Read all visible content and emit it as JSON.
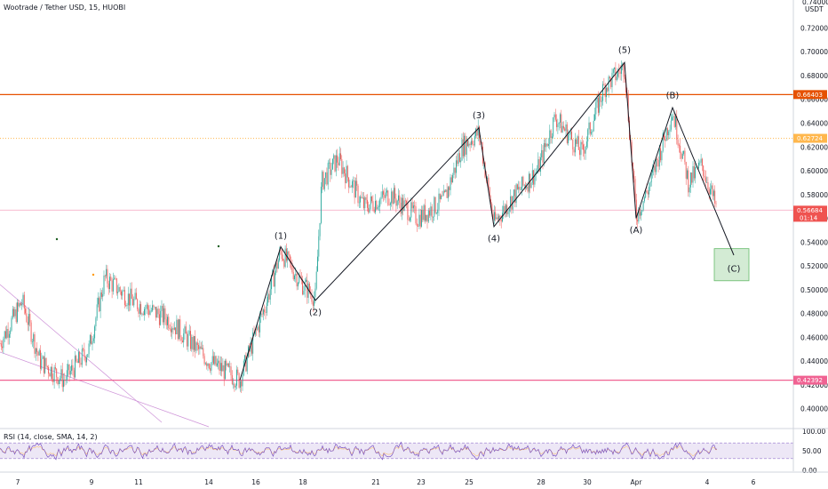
{
  "title": "Wootrade / Tether USD, 15, HUOBI",
  "currency": "USDT",
  "rsi_label": "RSI (14, close, SMA, 14, 2)",
  "colors": {
    "up": "#26a69a",
    "down": "#ef5350",
    "orange_line": "#e65100",
    "orange_dotted": "#ffb74d",
    "pink_line": "#f06292",
    "rsi": "#7e57c2",
    "rsi_band": "#ede7f6",
    "green_box": "#c8e6c9"
  },
  "chart_data": {
    "type": "candlestick",
    "x_ticks": [
      {
        "label": "7",
        "px": 20
      },
      {
        "label": "9",
        "px": 103
      },
      {
        "label": "11",
        "px": 156
      },
      {
        "label": "14",
        "px": 235
      },
      {
        "label": "16",
        "px": 288
      },
      {
        "label": "18",
        "px": 341
      },
      {
        "label": "21",
        "px": 423
      },
      {
        "label": "23",
        "px": 474
      },
      {
        "label": "25",
        "px": 528
      },
      {
        "label": "28",
        "px": 609
      },
      {
        "label": "30",
        "px": 661
      },
      {
        "label": "Apr",
        "px": 716
      },
      {
        "label": "4",
        "px": 796
      },
      {
        "label": "6",
        "px": 848
      }
    ],
    "y_ticks": [
      "0.72000",
      "0.70000",
      "0.68000",
      "0.66000",
      "0.64000",
      "0.62000",
      "0.60000",
      "0.58000",
      "0.56000",
      "0.54000",
      "0.52000",
      "0.50000",
      "0.48000",
      "0.46000",
      "0.44000",
      "0.42000",
      "0.40000"
    ],
    "y_top_partial": "0.74000",
    "ylim": [
      0.39,
      0.745
    ],
    "price_labels": [
      {
        "value": 0.66403,
        "text": "0.66403",
        "color": "#e65100"
      },
      {
        "value": 0.62724,
        "text": "0.62724",
        "color": "#ffb74d"
      },
      {
        "value": 0.56684,
        "text": "0.56684",
        "sub": "01:14",
        "color": "#ef5350"
      },
      {
        "value": 0.42392,
        "text": "0.42392",
        "color": "#f06292"
      }
    ],
    "waves": [
      {
        "label": "(1)",
        "x": 316,
        "y": 0.5355
      },
      {
        "label": "(2)",
        "x": 355,
        "y": 0.4905
      },
      {
        "label": "(3)",
        "x": 539,
        "y": 0.6365
      },
      {
        "label": "(4)",
        "x": 556,
        "y": 0.5525
      },
      {
        "label": "(5)",
        "x": 703,
        "y": 0.6915
      },
      {
        "label": "(A)",
        "x": 716,
        "y": 0.5595
      },
      {
        "label": "(B)",
        "x": 757,
        "y": 0.6535
      },
      {
        "label": "(C)",
        "x": 826,
        "y": 0.5285
      }
    ],
    "rsi_ticks": [
      "100.00",
      "50.00",
      "0.00"
    ]
  }
}
